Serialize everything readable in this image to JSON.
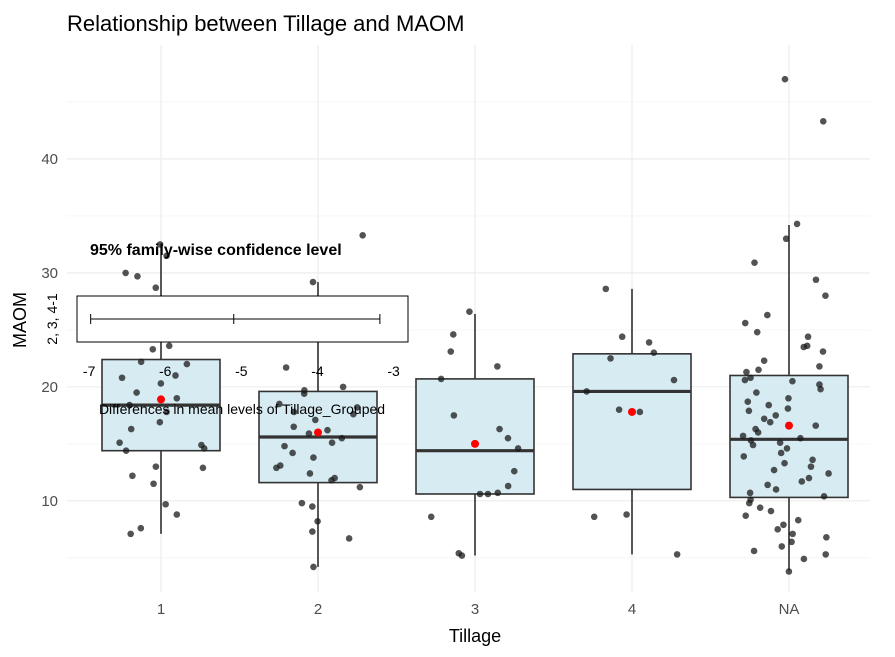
{
  "chart_data": {
    "type": "box",
    "title": "Relationship between Tillage and MAOM",
    "xlabel": "Tillage",
    "ylabel": "MAOM",
    "categories": [
      "1",
      "2",
      "3",
      "4",
      "NA"
    ],
    "ylim": [
      2,
      50
    ],
    "yticks": [
      10,
      20,
      30,
      40
    ],
    "grid": true,
    "boxes": [
      {
        "category": "1",
        "q1": 14.4,
        "median": 18.4,
        "q3": 22.4,
        "whisker_low": 7.1,
        "whisker_high": 32.4,
        "mean": 18.9
      },
      {
        "category": "2",
        "q1": 11.6,
        "median": 15.6,
        "q3": 19.6,
        "whisker_low": 4.2,
        "whisker_high": 29.2,
        "mean": 16.0
      },
      {
        "category": "3",
        "q1": 10.6,
        "median": 14.4,
        "q3": 20.7,
        "whisker_low": 5.2,
        "whisker_high": 26.4,
        "mean": 15.0
      },
      {
        "category": "4",
        "q1": 11.0,
        "median": 19.6,
        "q3": 22.9,
        "whisker_low": 5.3,
        "whisker_high": 28.6,
        "mean": 17.8
      },
      {
        "category": "NA",
        "q1": 10.3,
        "median": 15.4,
        "q3": 21.0,
        "whisker_low": 3.9,
        "whisker_high": 34.2,
        "mean": 16.6
      }
    ],
    "points": [
      {
        "category": "1",
        "values": [
          32.5,
          31.5,
          30.0,
          29.7,
          28.7,
          27.6,
          27.2,
          26.0,
          23.6,
          23.3,
          22.2,
          22.0,
          21.0,
          20.8,
          20.3,
          19.5,
          19.0,
          18.4,
          17.8,
          16.9,
          16.3,
          15.1,
          14.9,
          14.6,
          14.4,
          13.0,
          12.9,
          12.2,
          11.5,
          9.7,
          8.8,
          7.6,
          7.1
        ]
      },
      {
        "category": "2",
        "values": [
          33.3,
          29.2,
          27.6,
          26.8,
          24.5,
          21.7,
          20.0,
          19.7,
          19.4,
          18.5,
          18.2,
          17.8,
          17.6,
          17.1,
          16.5,
          16.2,
          15.9,
          15.5,
          15.1,
          14.8,
          14.2,
          13.8,
          13.1,
          12.9,
          12.4,
          12.0,
          11.8,
          11.2,
          9.8,
          9.5,
          8.2,
          7.3,
          6.7,
          4.2
        ]
      },
      {
        "category": "3",
        "values": [
          26.6,
          24.6,
          23.1,
          21.8,
          20.7,
          17.5,
          16.3,
          15.5,
          14.6,
          12.6,
          11.3,
          10.7,
          10.6,
          10.6,
          8.6,
          5.4,
          5.2
        ]
      },
      {
        "category": "4",
        "values": [
          28.6,
          24.4,
          23.9,
          23.0,
          22.5,
          20.6,
          19.6,
          18.0,
          17.8,
          8.8,
          8.6,
          5.3
        ]
      },
      {
        "category": "NA",
        "values": [
          47.0,
          43.3,
          34.3,
          33.0,
          30.9,
          29.4,
          28.0,
          26.3,
          25.6,
          24.8,
          24.4,
          23.6,
          23.5,
          23.1,
          22.3,
          21.8,
          21.5,
          21.3,
          20.8,
          20.6,
          20.5,
          20.2,
          19.8,
          19.5,
          19.0,
          18.7,
          18.4,
          18.1,
          17.9,
          17.5,
          17.2,
          16.9,
          16.6,
          16.3,
          16.0,
          15.7,
          15.5,
          15.3,
          15.1,
          14.9,
          14.6,
          14.2,
          13.9,
          13.6,
          13.3,
          13.0,
          12.7,
          12.4,
          12.0,
          11.7,
          11.4,
          11.0,
          10.7,
          10.4,
          10.1,
          9.8,
          9.4,
          9.1,
          8.7,
          8.3,
          7.9,
          7.5,
          7.1,
          6.8,
          6.4,
          6.0,
          5.6,
          5.3,
          4.9,
          3.8
        ]
      }
    ],
    "inset": {
      "title": "95% family-wise confidence level",
      "xlabel": "Differences in mean levels of Tillage_Grouped",
      "ylabel": "2, 3, 4-1",
      "xticks": [
        "-7",
        "-6",
        "-5",
        "-4",
        "-3"
      ],
      "xlim": [
        -7.12,
        -2.85
      ],
      "interval": {
        "lwr": -6.98,
        "estimate": -5.1,
        "upr": -3.18
      }
    },
    "colors": {
      "box_fill": "#d7ebf2",
      "mean": "#ff0000",
      "points": "#1a1a1a"
    }
  }
}
